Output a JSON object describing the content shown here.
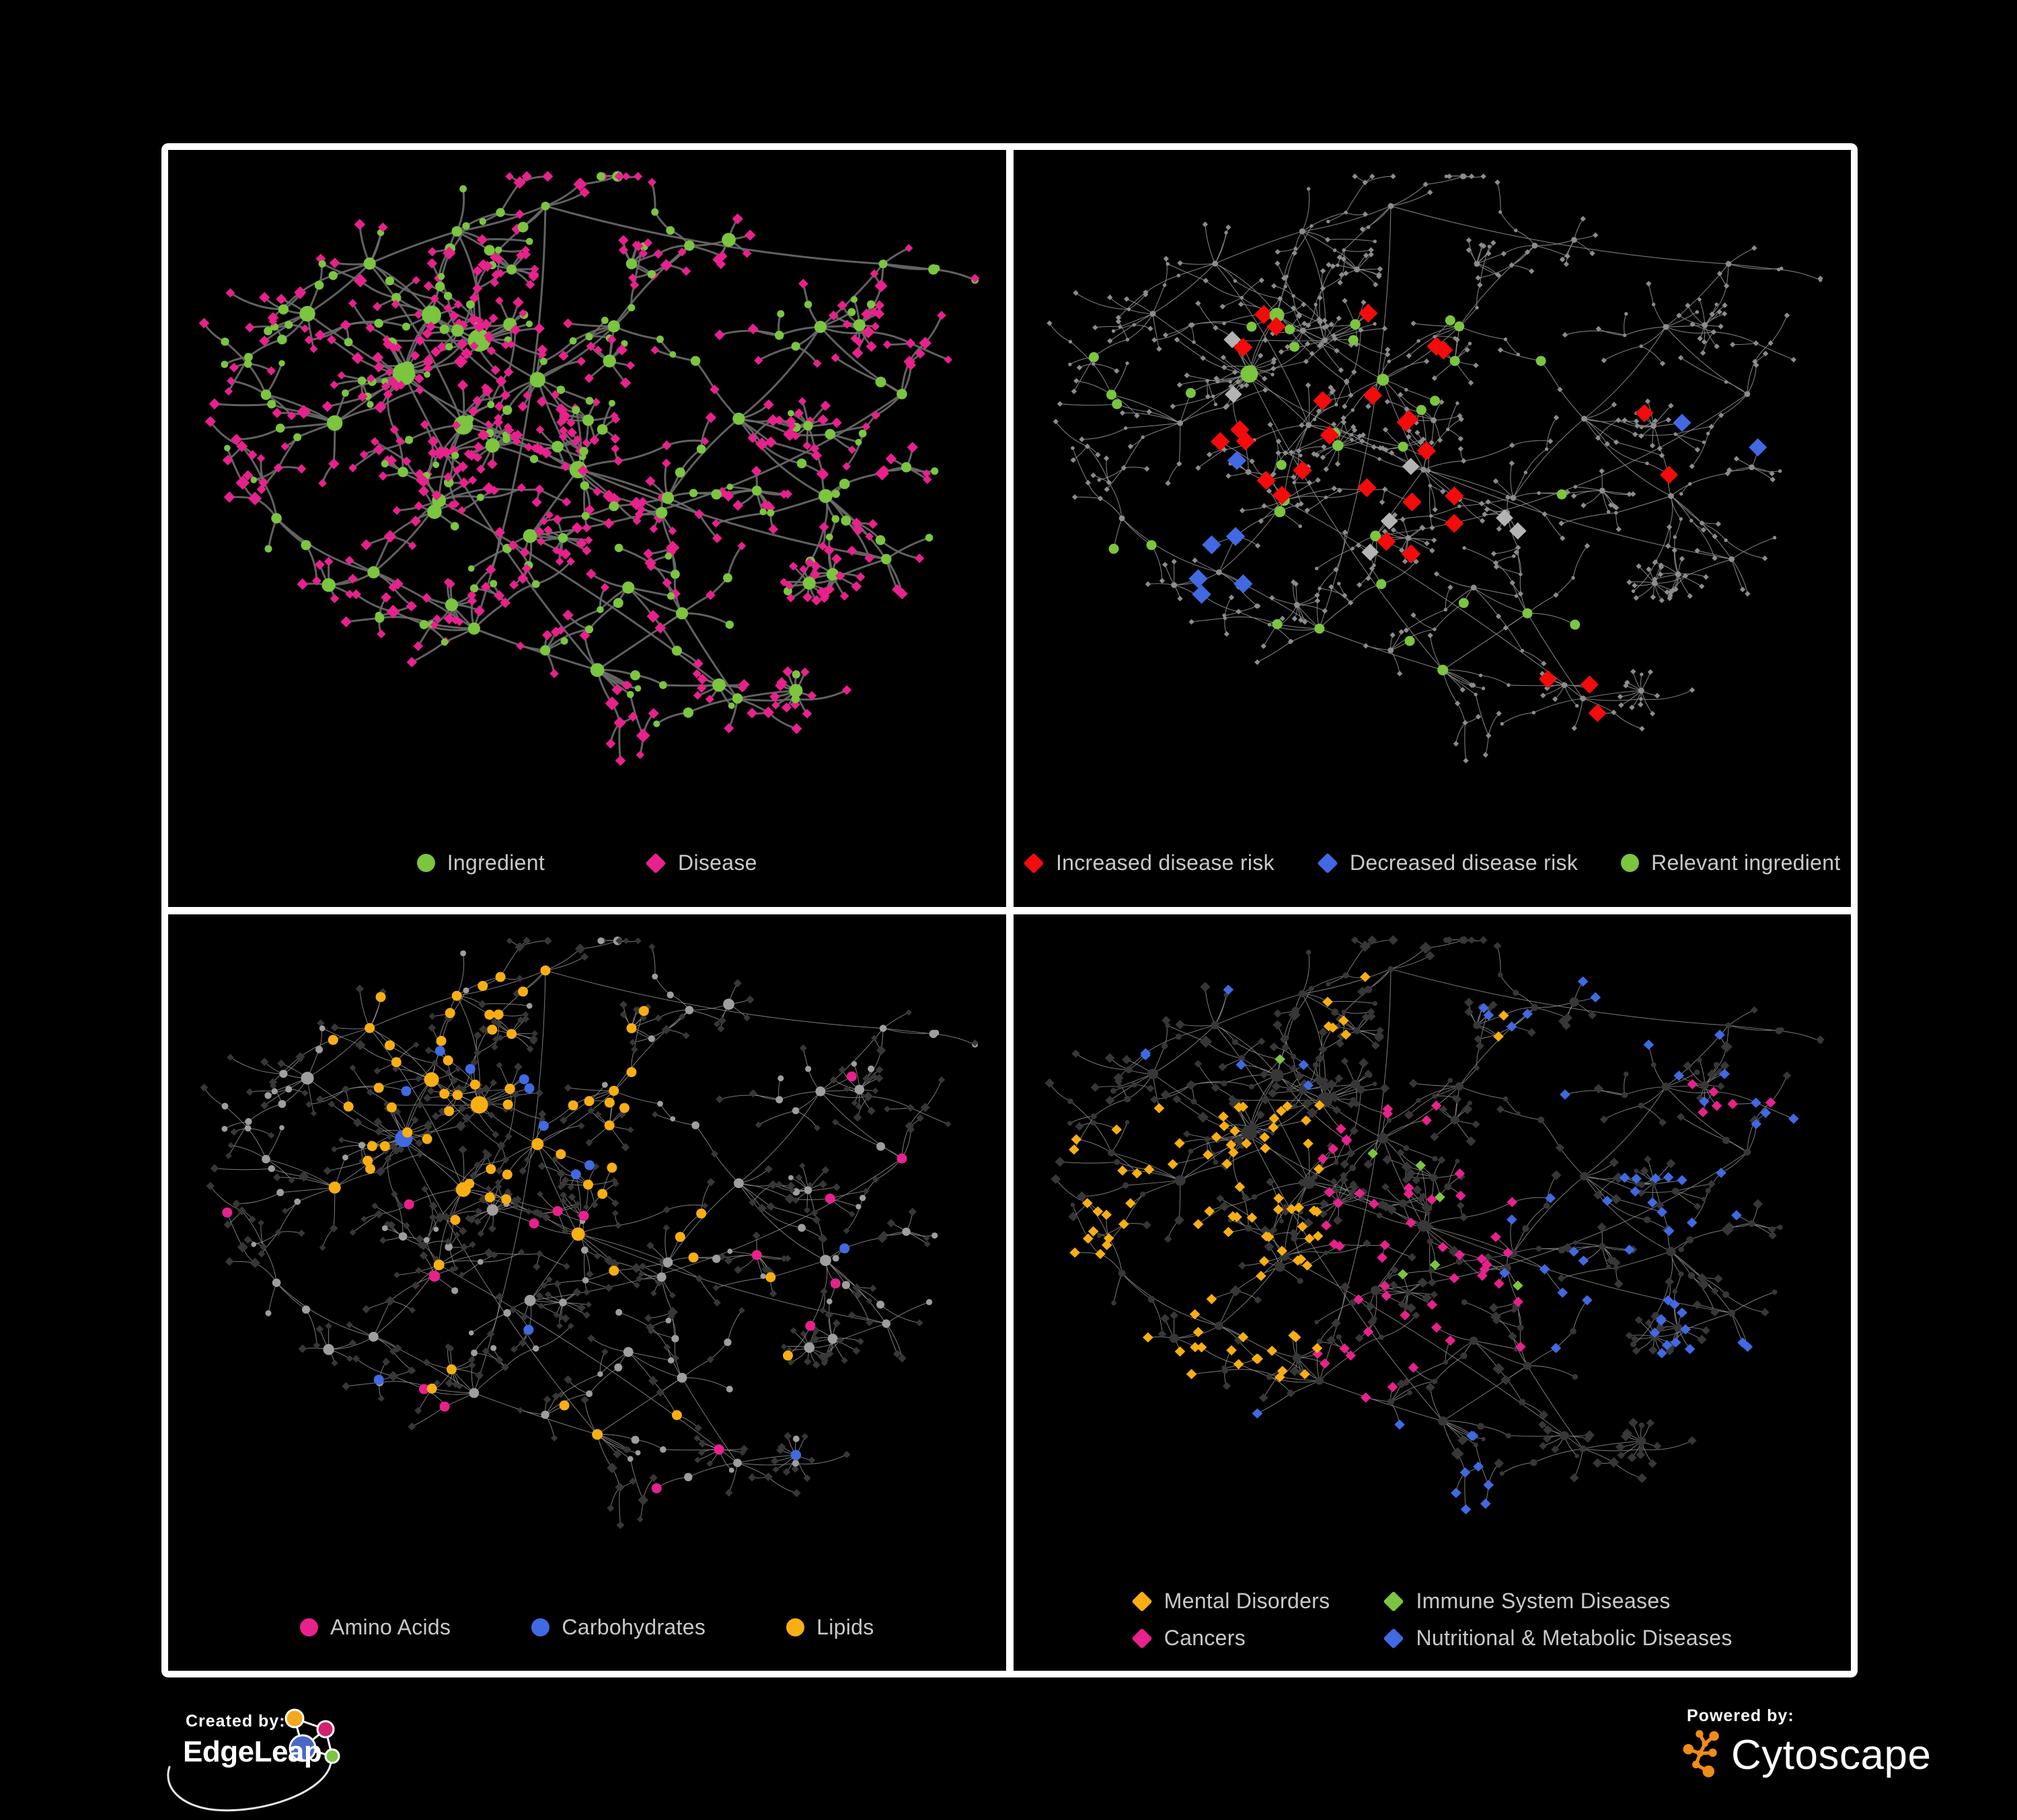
{
  "colors": {
    "green": "#7CC53F",
    "magenta": "#E8218C",
    "red": "#F40B0B",
    "royal_blue": "#4169E1",
    "amber": "#F9AE13",
    "gray_highlight": "#B4B4B4",
    "dim_node": "#8C8C8C",
    "dark_node": "#373737",
    "gray_node": "#9E9E9E",
    "edge_dark": "#6C6C6C",
    "edge_light": "#8A8A8A",
    "legend_text": "#C9C9C9",
    "white": "#FFFFFF",
    "edgeleap_blue": "#4A67C9",
    "edgeleap_orange": "#F5A81C",
    "edgeleap_pink": "#D4216E",
    "cytoscape_orange": "#EF8C1A"
  },
  "network": {
    "seed": 1337,
    "hubs": [
      [
        0.16,
        0.24,
        9,
        7,
        0.1
      ],
      [
        0.24,
        0.16,
        7,
        6,
        0.1
      ],
      [
        0.33,
        0.1,
        6,
        5,
        0.15
      ],
      [
        0.45,
        0.08,
        5,
        4,
        0.2
      ],
      [
        0.3,
        0.22,
        11,
        9,
        0.1
      ],
      [
        0.38,
        0.28,
        13,
        10,
        0.15
      ],
      [
        0.27,
        0.33,
        13,
        10,
        0.15
      ],
      [
        0.18,
        0.4,
        9,
        7,
        0.15
      ],
      [
        0.34,
        0.41,
        11,
        9,
        0.2
      ],
      [
        0.44,
        0.34,
        9,
        7,
        0.1
      ],
      [
        0.53,
        0.26,
        7,
        6,
        0.1
      ],
      [
        0.63,
        0.14,
        6,
        5,
        0.2
      ],
      [
        0.5,
        0.47,
        10,
        8,
        0.25
      ],
      [
        0.42,
        0.56,
        8,
        6,
        0.3
      ],
      [
        0.3,
        0.52,
        8,
        7,
        0.25
      ],
      [
        0.24,
        0.63,
        7,
        5,
        0.3
      ],
      [
        0.35,
        0.7,
        7,
        6,
        0.4
      ],
      [
        0.5,
        0.78,
        8,
        8,
        0.5
      ],
      [
        0.63,
        0.68,
        7,
        5,
        0.25
      ],
      [
        0.6,
        0.52,
        7,
        6,
        0.2
      ],
      [
        0.7,
        0.38,
        7,
        6,
        0.2
      ],
      [
        0.78,
        0.26,
        7,
        6,
        0.25
      ],
      [
        0.88,
        0.14,
        5,
        4,
        0.3
      ],
      [
        0.8,
        0.5,
        8,
        7,
        0.35
      ],
      [
        0.9,
        0.36,
        6,
        4,
        0.2
      ],
      [
        0.88,
        0.62,
        6,
        5,
        0.3
      ],
      [
        0.68,
        0.82,
        6,
        5,
        0.35
      ],
      [
        0.12,
        0.55,
        6,
        4,
        0.25
      ],
      [
        0.1,
        0.35,
        6,
        4,
        0.15
      ],
      [
        0.55,
        0.64,
        7,
        5,
        0.25
      ]
    ]
  },
  "panels": [
    {
      "name": "ingredient-disease",
      "seed": 101,
      "style": {
        "edge": "edge_dark",
        "edgeW": 3.0,
        "circleColor": "green",
        "diamondColor": "magenta",
        "circleScale": 1.3,
        "diamondScale": 1.25
      },
      "highlight_rules": [],
      "legend": {
        "rows": 1,
        "gap": 150,
        "items": [
          {
            "shape": "circle",
            "color": "green",
            "label": "Ingredient"
          },
          {
            "shape": "diamond",
            "color": "magenta",
            "label": "Disease"
          }
        ]
      }
    },
    {
      "name": "disease-risk",
      "seed": 202,
      "style": {
        "dim": true,
        "edge": "edge_light",
        "edgeW": 1.1,
        "dimColor": "dim_node"
      },
      "highlight_rules": [
        {
          "applies": "diamond",
          "shape": "diamond",
          "color": "red",
          "r": 10.5,
          "count": 24,
          "region": [
            0.2,
            0.22,
            0.62,
            0.62
          ]
        },
        {
          "applies": "diamond",
          "shape": "diamond",
          "color": "red",
          "r": 10,
          "count": 3,
          "region": [
            0.55,
            0.72,
            0.78,
            0.9
          ]
        },
        {
          "applies": "diamond",
          "shape": "diamond",
          "color": "red",
          "r": 10,
          "count": 2,
          "region": [
            0.64,
            0.32,
            0.8,
            0.55
          ]
        },
        {
          "applies": "diamond",
          "shape": "diamond",
          "color": "royal_blue",
          "r": 10.5,
          "count": 6,
          "region": [
            0.12,
            0.4,
            0.27,
            0.68
          ]
        },
        {
          "applies": "diamond",
          "shape": "diamond",
          "color": "royal_blue",
          "r": 10,
          "count": 2,
          "region": [
            0.76,
            0.28,
            0.92,
            0.46
          ]
        },
        {
          "applies": "diamond",
          "shape": "diamond",
          "color": "gray_highlight",
          "r": 9.5,
          "count": 7,
          "region": [
            0.1,
            0.25,
            0.68,
            0.72
          ]
        },
        {
          "applies": "circle",
          "shape": "circle",
          "color": "green",
          "count": 36,
          "region": [
            0.05,
            0.22,
            0.7,
            0.78
          ]
        }
      ],
      "legend": {
        "rows": 1,
        "gap": 64,
        "items": [
          {
            "shape": "diamond",
            "color": "red",
            "label": "Increased disease risk"
          },
          {
            "shape": "diamond",
            "color": "royal_blue",
            "label": "Decreased disease risk"
          },
          {
            "shape": "circle",
            "color": "green",
            "label": "Relevant ingredient"
          }
        ]
      }
    },
    {
      "name": "nutrient-classes",
      "seed": 303,
      "style": {
        "edge": "edge_light",
        "edgeW": 1.0,
        "circleColor": "gray_node",
        "diamondColor": "dark_node",
        "circleScale": 1.05,
        "diamondScale": 0.95
      },
      "highlight_rules": [
        {
          "applies": "circle",
          "shape": "circle",
          "color": "amber",
          "count": 55,
          "region": [
            0.18,
            0.05,
            0.58,
            0.42
          ]
        },
        {
          "applies": "circle",
          "shape": "circle",
          "color": "amber",
          "count": 14,
          "region": [
            0.25,
            0.42,
            0.85,
            0.78
          ]
        },
        {
          "applies": "circle",
          "shape": "circle",
          "color": "royal_blue",
          "count": 9,
          "region": [
            0.26,
            0.12,
            0.52,
            0.4
          ]
        },
        {
          "applies": "circle",
          "shape": "circle",
          "color": "royal_blue",
          "count": 4,
          "region": [
            0.1,
            0.3,
            0.95,
            0.85
          ]
        },
        {
          "applies": "circle",
          "shape": "circle",
          "color": "magenta",
          "count": 16,
          "region": [
            0.05,
            0.12,
            0.95,
            0.92
          ]
        }
      ],
      "legend": {
        "rows": 1,
        "gap": 120,
        "items": [
          {
            "shape": "circle",
            "color": "magenta",
            "label": "Amino Acids"
          },
          {
            "shape": "circle",
            "color": "royal_blue",
            "label": "Carbohydrates"
          },
          {
            "shape": "circle",
            "color": "amber",
            "label": "Lipids"
          }
        ]
      }
    },
    {
      "name": "disease-categories",
      "seed": 404,
      "style": {
        "edge": "edge_light",
        "edgeW": 1.0,
        "circleColor": "dark_node",
        "diamondColor": "dark_node",
        "circleScale": 0.9,
        "diamondScale": 1.15
      },
      "highlight_rules": [
        {
          "applies": "diamond",
          "shape": "diamond",
          "color": "amber",
          "r": 5.8,
          "count": 85,
          "region": [
            0.05,
            0.28,
            0.36,
            0.72
          ]
        },
        {
          "applies": "diamond",
          "shape": "diamond",
          "color": "amber",
          "r": 5.8,
          "count": 8,
          "region": [
            0.3,
            0.02,
            0.62,
            0.2
          ]
        },
        {
          "applies": "diamond",
          "shape": "diamond",
          "color": "magenta",
          "r": 5.8,
          "count": 52,
          "region": [
            0.34,
            0.28,
            0.64,
            0.75
          ]
        },
        {
          "applies": "diamond",
          "shape": "diamond",
          "color": "magenta",
          "r": 5.8,
          "count": 6,
          "region": [
            0.82,
            0.1,
            0.98,
            0.3
          ]
        },
        {
          "applies": "diamond",
          "shape": "diamond",
          "color": "royal_blue",
          "r": 5.8,
          "count": 52,
          "region": [
            0.56,
            0.06,
            0.97,
            0.75
          ]
        },
        {
          "applies": "diamond",
          "shape": "diamond",
          "color": "royal_blue",
          "r": 5.8,
          "count": 10,
          "region": [
            0.2,
            0.75,
            0.6,
            0.95
          ]
        },
        {
          "applies": "diamond",
          "shape": "diamond",
          "color": "royal_blue",
          "r": 5.8,
          "count": 6,
          "region": [
            0.05,
            0.05,
            0.35,
            0.25
          ]
        },
        {
          "applies": "diamond",
          "shape": "diamond",
          "color": "green",
          "r": 5.8,
          "count": 7,
          "region": [
            0.3,
            0.2,
            0.68,
            0.6
          ]
        }
      ],
      "legend": {
        "rows": 2,
        "gap": 80,
        "items": [
          {
            "shape": "diamond",
            "color": "amber",
            "label": "Mental Disorders"
          },
          {
            "shape": "diamond",
            "color": "green",
            "label": "Immune System Diseases"
          },
          {
            "shape": "diamond",
            "color": "magenta",
            "label": "Cancers"
          },
          {
            "shape": "diamond",
            "color": "royal_blue",
            "label": "Nutritional & Metabolic Diseases"
          }
        ]
      }
    }
  ],
  "footer": {
    "created_by_label": "Created by:",
    "created_by_name": "EdgeLeap",
    "powered_by_label": "Powered by:",
    "powered_by_name": "Cytoscape"
  }
}
